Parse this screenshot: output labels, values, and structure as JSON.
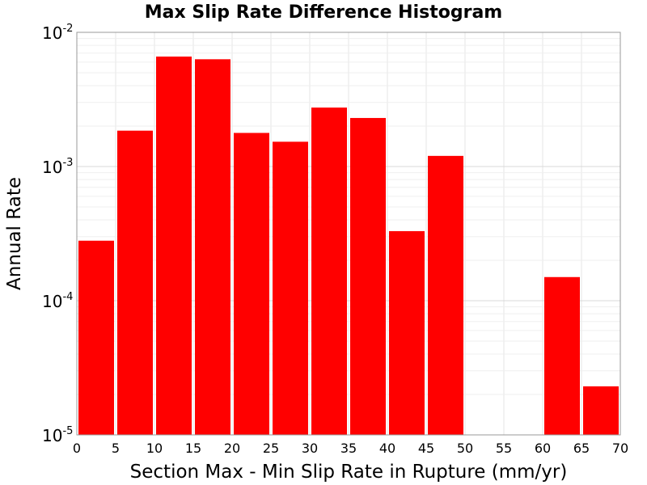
{
  "chart_data": {
    "type": "bar",
    "title": "Max Slip Rate Difference Histogram",
    "xlabel": "Section Max - Min Slip Rate in Rupture (mm/yr)",
    "ylabel": "Annual Rate",
    "x_ticks": [
      "0",
      "5",
      "10",
      "15",
      "20",
      "25",
      "30",
      "35",
      "40",
      "45",
      "50",
      "55",
      "60",
      "65",
      "70"
    ],
    "y_ticks": [
      {
        "base": "10",
        "exp": "-5",
        "value": 1e-05
      },
      {
        "base": "10",
        "exp": "-4",
        "value": 0.0001
      },
      {
        "base": "10",
        "exp": "-3",
        "value": 0.001
      },
      {
        "base": "10",
        "exp": "-2",
        "value": 0.01
      }
    ],
    "xlim": [
      0,
      70
    ],
    "ylim": [
      1e-05,
      0.01
    ],
    "yscale": "log",
    "grid": true,
    "bar_color": "#ff0000",
    "bins": [
      {
        "x0": 0,
        "x1": 5,
        "value": 0.00028
      },
      {
        "x0": 5,
        "x1": 10,
        "value": 0.00185
      },
      {
        "x0": 10,
        "x1": 15,
        "value": 0.0066
      },
      {
        "x0": 15,
        "x1": 20,
        "value": 0.0063
      },
      {
        "x0": 20,
        "x1": 25,
        "value": 0.00178
      },
      {
        "x0": 25,
        "x1": 30,
        "value": 0.00153
      },
      {
        "x0": 30,
        "x1": 35,
        "value": 0.00275
      },
      {
        "x0": 35,
        "x1": 40,
        "value": 0.0023
      },
      {
        "x0": 40,
        "x1": 45,
        "value": 0.00033
      },
      {
        "x0": 45,
        "x1": 50,
        "value": 0.0012
      },
      {
        "x0": 60,
        "x1": 65,
        "value": 0.00015
      },
      {
        "x0": 65,
        "x1": 70,
        "value": 2.3e-05
      }
    ]
  }
}
